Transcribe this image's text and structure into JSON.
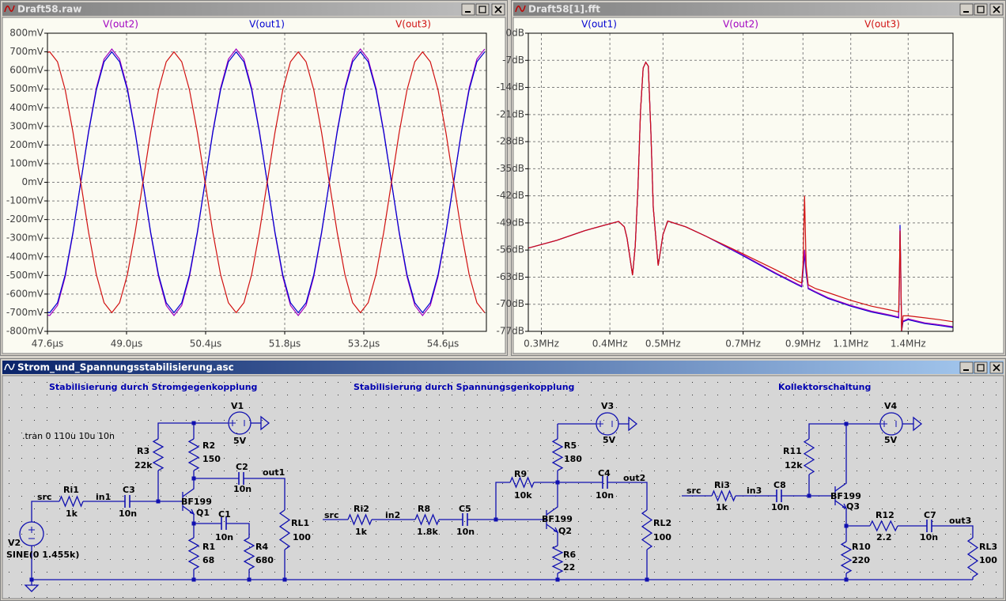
{
  "windows": [
    "Draft58.raw",
    "Draft58[1].fft",
    "Strom_und_Spannungsstabilisierung.asc"
  ],
  "chart_data": [
    {
      "type": "line",
      "x": [
        47.6,
        47.64,
        47.7775,
        47.915,
        48.0525,
        48.19,
        48.3275,
        48.465,
        48.6025,
        48.74,
        48.8775,
        49.015,
        49.1525,
        49.29,
        49.4275,
        49.565,
        49.7025,
        49.84,
        49.9775,
        50.115,
        50.2525,
        50.39,
        50.5275,
        50.665,
        50.8025,
        50.94,
        51.0775,
        51.215,
        51.3525,
        51.49,
        51.6275,
        51.765,
        51.9025,
        52.04,
        52.1775,
        52.315,
        52.4525,
        52.59,
        52.7275,
        52.865,
        53.0025,
        53.14,
        53.2775,
        53.415,
        53.5525,
        53.69,
        53.8275,
        53.965,
        54.1025,
        54.24,
        54.3775,
        54.515,
        54.6525,
        54.79,
        54.9275,
        55.065,
        55.2025,
        55.34
      ],
      "series": [
        {
          "name": "V(out2)",
          "color": "#a000c0",
          "values": [
            -712,
            -715,
            -661,
            -506,
            -274,
            0,
            274,
            506,
            661,
            715,
            661,
            506,
            274,
            0,
            -274,
            -506,
            -661,
            -715,
            -661,
            -506,
            -274,
            0,
            274,
            506,
            661,
            715,
            661,
            506,
            274,
            0,
            -274,
            -506,
            -661,
            -715,
            -661,
            -506,
            -274,
            0,
            274,
            506,
            661,
            715,
            661,
            506,
            274,
            0,
            -274,
            -506,
            -661,
            -715,
            -661,
            -506,
            -274,
            0,
            274,
            506,
            661,
            715
          ]
        },
        {
          "name": "V(out1)",
          "color": "#0000d0",
          "values": [
            -697,
            -700,
            -647,
            -495,
            -268,
            0,
            268,
            495,
            647,
            700,
            647,
            495,
            268,
            0,
            -268,
            -495,
            -647,
            -700,
            -647,
            -495,
            -268,
            0,
            268,
            495,
            647,
            700,
            647,
            495,
            268,
            0,
            -268,
            -495,
            -647,
            -700,
            -647,
            -495,
            -268,
            0,
            268,
            495,
            647,
            700,
            647,
            495,
            268,
            0,
            -268,
            -495,
            -647,
            -700,
            -647,
            -495,
            -268,
            0,
            268,
            495,
            647,
            700
          ]
        },
        {
          "name": "V(out3)",
          "color": "#d01010",
          "values": [
            697,
            700,
            647,
            495,
            268,
            0,
            -268,
            -495,
            -647,
            -700,
            -647,
            -495,
            -268,
            0,
            268,
            495,
            647,
            700,
            647,
            495,
            268,
            0,
            -268,
            -495,
            -647,
            -700,
            -647,
            -495,
            -268,
            0,
            268,
            495,
            647,
            700,
            647,
            495,
            268,
            0,
            -268,
            -495,
            -647,
            -700,
            -647,
            -495,
            -268,
            0,
            268,
            495,
            647,
            700,
            647,
            495,
            268,
            0,
            -268,
            -495,
            -647,
            -700
          ]
        }
      ],
      "xlim": [
        47.6,
        55.37
      ],
      "xticks": [
        {
          "value": 47.6,
          "label": "47.6µs"
        },
        {
          "value": 49.0,
          "label": "49.0µs"
        },
        {
          "value": 50.4,
          "label": "50.4µs"
        },
        {
          "value": 51.8,
          "label": "51.8µs"
        },
        {
          "value": 53.2,
          "label": "53.2µs"
        },
        {
          "value": 54.6,
          "label": "54.6µs"
        }
      ],
      "ylim": [
        -800,
        800
      ],
      "yticks": [
        {
          "value": 800,
          "label": "800mV"
        },
        {
          "value": 700,
          "label": "700mV"
        },
        {
          "value": 600,
          "label": "600mV"
        },
        {
          "value": 500,
          "label": "500mV"
        },
        {
          "value": 400,
          "label": "400mV"
        },
        {
          "value": 300,
          "label": "300mV"
        },
        {
          "value": 200,
          "label": "200mV"
        },
        {
          "value": 100,
          "label": "100mV"
        },
        {
          "value": 0,
          "label": "0mV"
        },
        {
          "value": -100,
          "label": "-100mV"
        },
        {
          "value": -200,
          "label": "-200mV"
        },
        {
          "value": -300,
          "label": "-300mV"
        },
        {
          "value": -400,
          "label": "-400mV"
        },
        {
          "value": -500,
          "label": "-500mV"
        },
        {
          "value": -600,
          "label": "-600mV"
        },
        {
          "value": -700,
          "label": "-700mV"
        },
        {
          "value": -800,
          "label": "-800mV"
        }
      ],
      "grid": true
    },
    {
      "type": "line",
      "xscale": "log",
      "x": [
        0.284,
        0.32,
        0.36,
        0.4,
        0.415,
        0.425,
        0.43,
        0.44,
        0.445,
        0.45,
        0.455,
        0.46,
        0.465,
        0.47,
        0.475,
        0.48,
        0.49,
        0.5,
        0.51,
        0.55,
        0.6,
        0.7,
        0.8,
        0.88,
        0.895,
        0.9,
        0.906,
        0.912,
        0.92,
        0.95,
        1.0,
        1.1,
        1.2,
        1.3,
        1.345,
        1.35,
        1.353,
        1.357,
        1.362,
        1.37,
        1.4,
        1.5,
        1.6,
        1.69
      ],
      "series": [
        {
          "name": "V(out1)",
          "color": "#0000d0",
          "values": [
            -55.5,
            -53.5,
            -51,
            -49.2,
            -48.6,
            -50,
            -53,
            -62.5,
            -55,
            -40,
            -20,
            -9,
            -7.5,
            -8.5,
            -25,
            -45,
            -60,
            -52,
            -48.5,
            -50,
            -52.5,
            -57.5,
            -62,
            -65,
            -65.5,
            -62,
            -57,
            -62,
            -66,
            -67,
            -68.5,
            -70.5,
            -72,
            -73,
            -73.5,
            -62,
            -49.5,
            -60,
            -77,
            -74.5,
            -74,
            -75,
            -75.5,
            -76
          ]
        },
        {
          "name": "V(out2)",
          "color": "#a000c0",
          "values": [
            -55.5,
            -53.5,
            -51,
            -49.2,
            -48.6,
            -50,
            -53,
            -62.5,
            -55,
            -40,
            -20,
            -9,
            -7.5,
            -8.5,
            -25,
            -45,
            -60,
            -52,
            -48.5,
            -50,
            -52.5,
            -57.3,
            -61.8,
            -64.8,
            -65.3,
            -61,
            -56,
            -61,
            -65.8,
            -66.8,
            -68.3,
            -70.3,
            -71.8,
            -72.8,
            -73.3,
            -62,
            -50.5,
            -61,
            -76,
            -74.3,
            -73.8,
            -74.8,
            -75.3,
            -75.8
          ]
        },
        {
          "name": "V(out3)",
          "color": "#d01010",
          "values": [
            -55.5,
            -53.5,
            -51,
            -49.2,
            -48.6,
            -50,
            -53,
            -62.5,
            -55,
            -40,
            -20,
            -9,
            -7.5,
            -8.5,
            -25,
            -45,
            -60,
            -52,
            -48.5,
            -50,
            -52.5,
            -57,
            -61,
            -64,
            -64.5,
            -60,
            -42,
            -60,
            -65,
            -66,
            -67,
            -69,
            -70.5,
            -71.5,
            -72,
            -60,
            -51,
            -62,
            -77,
            -73,
            -73,
            -73.5,
            -74,
            -74.5
          ]
        }
      ],
      "xlim": [
        0.284,
        1.69
      ],
      "xticks": [
        {
          "value": 0.3,
          "label": "0.3MHz"
        },
        {
          "value": 0.4,
          "label": "0.4MHz"
        },
        {
          "value": 0.5,
          "label": "0.5MHz"
        },
        {
          "value": 0.7,
          "label": "0.7MHz"
        },
        {
          "value": 0.9,
          "label": "0.9MHz"
        },
        {
          "value": 1.1,
          "label": "1.1MHz"
        },
        {
          "value": 1.4,
          "label": "1.4MHz"
        }
      ],
      "ylim": [
        -77,
        0
      ],
      "yticks": [
        {
          "value": 0,
          "label": "0dB"
        },
        {
          "value": -7,
          "label": "-7dB"
        },
        {
          "value": -14,
          "label": "-14dB"
        },
        {
          "value": -21,
          "label": "-21dB"
        },
        {
          "value": -28,
          "label": "-28dB"
        },
        {
          "value": -35,
          "label": "-35dB"
        },
        {
          "value": -42,
          "label": "-42dB"
        },
        {
          "value": -49,
          "label": "-49dB"
        },
        {
          "value": -56,
          "label": "-56dB"
        },
        {
          "value": -63,
          "label": "-63dB"
        },
        {
          "value": -70,
          "label": "-70dB"
        },
        {
          "value": -77,
          "label": "-77dB"
        }
      ],
      "grid": true
    }
  ],
  "schematic": {
    "comments": [
      "Stabilisierung durch Stromgegenkopplung",
      "Stabilisierung durch Spannungsgenkopplung",
      "Kollektorschaltung"
    ],
    "directive": ".tran 0 110u 10u 10n",
    "components": [
      {
        "name": "V2",
        "value": "SINE(0 1.455k)"
      },
      {
        "name": "Ri1",
        "value": "1k"
      },
      {
        "name": "C3",
        "value": "10n"
      },
      {
        "name": "R3",
        "value": "22k"
      },
      {
        "name": "V1",
        "value": "5V"
      },
      {
        "name": "R2",
        "value": "150"
      },
      {
        "name": "C2",
        "value": "10n"
      },
      {
        "name": "Q1",
        "value": "BF199"
      },
      {
        "name": "C1",
        "value": "10n"
      },
      {
        "name": "R1",
        "value": "68"
      },
      {
        "name": "R4",
        "value": "680"
      },
      {
        "name": "RL1",
        "value": "100"
      },
      {
        "name": "Ri2",
        "value": "1k"
      },
      {
        "name": "R8",
        "value": "1.8k"
      },
      {
        "name": "C5",
        "value": "10n"
      },
      {
        "name": "R9",
        "value": "10k"
      },
      {
        "name": "V3",
        "value": "5V"
      },
      {
        "name": "R5",
        "value": "180"
      },
      {
        "name": "C4",
        "value": "10n"
      },
      {
        "name": "Q2",
        "value": "BF199"
      },
      {
        "name": "R6",
        "value": "22"
      },
      {
        "name": "RL2",
        "value": "100"
      },
      {
        "name": "V4",
        "value": "5V"
      },
      {
        "name": "R11",
        "value": "12k"
      },
      {
        "name": "Ri3",
        "value": "1k"
      },
      {
        "name": "C8",
        "value": "10n"
      },
      {
        "name": "Q3",
        "value": "BF199"
      },
      {
        "name": "R12",
        "value": "2.2"
      },
      {
        "name": "C7",
        "value": "10n"
      },
      {
        "name": "R10",
        "value": "220"
      },
      {
        "name": "RL3",
        "value": "100"
      }
    ],
    "nets": [
      "src",
      "in1",
      "out1",
      "src",
      "in2",
      "out2",
      "src",
      "in3",
      "out3"
    ]
  }
}
